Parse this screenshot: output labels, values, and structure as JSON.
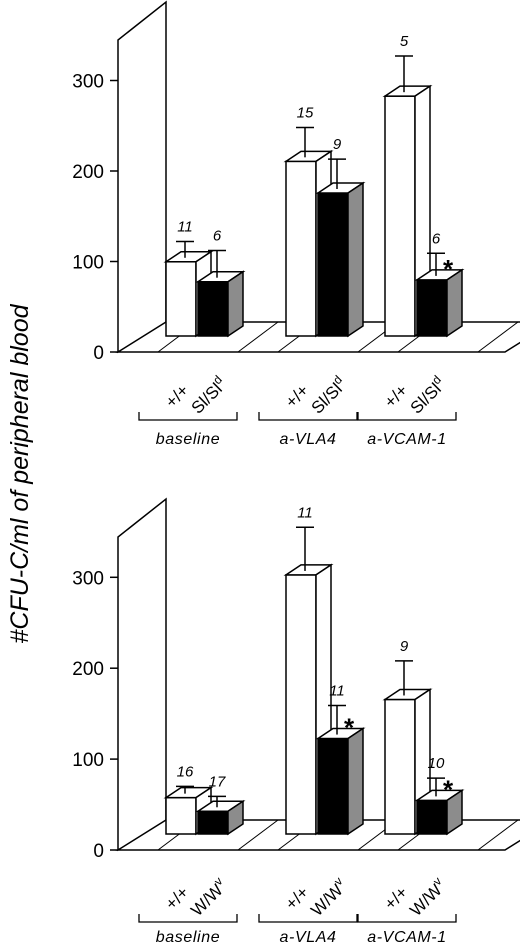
{
  "y_axis_label": "#CFU-C/ml of peripheral blood",
  "chart_data": [
    {
      "type": "bar",
      "ylim": [
        0,
        300
      ],
      "yticks": [
        0,
        100,
        200,
        300
      ],
      "grid": false,
      "groups": [
        "baseline",
        "a-VLA4",
        "a-VCAM-1"
      ],
      "bar_labels": [
        {
          "main": "+/+",
          "sup": ""
        },
        {
          "main": "Sl/Sl",
          "sup": "d"
        }
      ],
      "colors": {
        "wildtype": "#ffffff",
        "mutant": "#000000",
        "mutant_side": "#8c8c8c"
      },
      "series": [
        {
          "values": [
            82,
            193,
            265
          ],
          "errors": [
            18,
            33,
            40
          ],
          "n": [
            "11",
            "15",
            "5"
          ],
          "significant": [
            false,
            false,
            false
          ]
        },
        {
          "values": [
            60,
            158,
            62
          ],
          "errors": [
            30,
            33,
            25
          ],
          "n": [
            "6",
            "9",
            "6"
          ],
          "significant": [
            false,
            false,
            true
          ]
        }
      ],
      "marker": "*"
    },
    {
      "type": "bar",
      "ylim": [
        0,
        300
      ],
      "yticks": [
        0,
        100,
        200,
        300
      ],
      "grid": false,
      "groups": [
        "baseline",
        "a-VLA4",
        "a-VCAM-1"
      ],
      "bar_labels": [
        {
          "main": "+/+",
          "sup": ""
        },
        {
          "main": "W/W",
          "sup": "v"
        }
      ],
      "colors": {
        "wildtype": "#ffffff",
        "mutant": "#000000",
        "mutant_side": "#8c8c8c"
      },
      "series": [
        {
          "values": [
            40,
            285,
            148
          ],
          "errors": [
            8,
            48,
            38
          ],
          "n": [
            "16",
            "11",
            "9"
          ],
          "significant": [
            false,
            false,
            false
          ]
        },
        {
          "values": [
            25,
            105,
            37
          ],
          "errors": [
            12,
            32,
            20
          ],
          "n": [
            "17",
            "11",
            "10"
          ],
          "significant": [
            false,
            true,
            true
          ]
        }
      ],
      "marker": "*"
    }
  ]
}
